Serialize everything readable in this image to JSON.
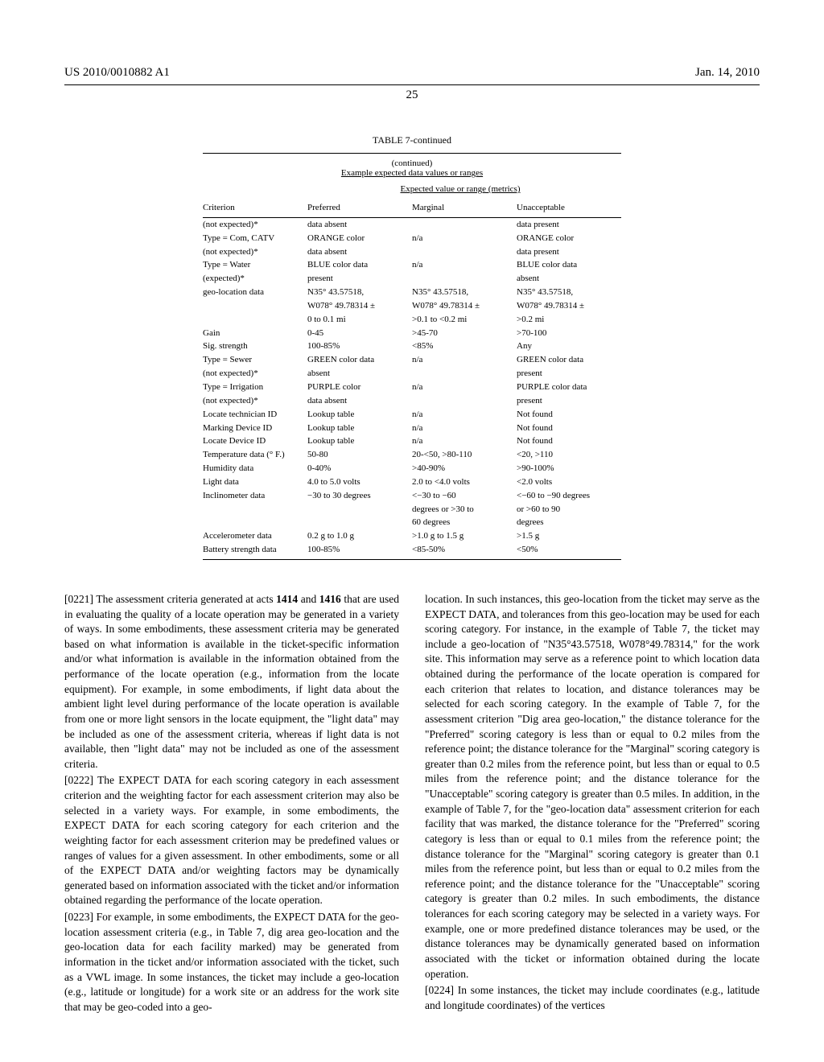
{
  "header": {
    "pub_number": "US 2010/0010882 A1",
    "pub_date": "Jan. 14, 2010",
    "page_number": "25"
  },
  "table": {
    "title": "TABLE 7-continued",
    "subtitle1": "(continued)",
    "subtitle2": "Example expected data values or ranges",
    "expected_header": "Expected value or range (metrics)",
    "columns": [
      "Criterion",
      "Preferred",
      "Marginal",
      "Unacceptable"
    ],
    "rows": [
      [
        "(not expected)*",
        "data absent",
        "",
        "data present"
      ],
      [
        "Type = Com, CATV",
        "ORANGE color",
        "n/a",
        "ORANGE color"
      ],
      [
        "(not expected)*",
        "data absent",
        "",
        "data present"
      ],
      [
        "Type = Water",
        "BLUE color data",
        "n/a",
        "BLUE color data"
      ],
      [
        "(expected)*",
        "present",
        "",
        "absent"
      ],
      [
        "geo-location data",
        "N35° 43.57518,",
        "N35° 43.57518,",
        "N35° 43.57518,"
      ],
      [
        "",
        "W078° 49.78314 ±",
        "W078° 49.78314 ±",
        "W078° 49.78314 ±"
      ],
      [
        "",
        "0 to 0.1 mi",
        ">0.1 to <0.2 mi",
        ">0.2 mi"
      ],
      [
        "Gain",
        "0-45",
        ">45-70",
        ">70-100"
      ],
      [
        "Sig. strength",
        "100-85%",
        "<85%",
        "Any"
      ],
      [
        "Type = Sewer",
        "GREEN color data",
        "n/a",
        "GREEN color data"
      ],
      [
        "(not expected)*",
        "absent",
        "",
        "present"
      ],
      [
        "Type = Irrigation",
        "PURPLE color",
        "n/a",
        "PURPLE color data"
      ],
      [
        "(not expected)*",
        "data absent",
        "",
        "present"
      ],
      [
        "Locate technician ID",
        "Lookup table",
        "n/a",
        "Not found"
      ],
      [
        "Marking Device ID",
        "Lookup table",
        "n/a",
        "Not found"
      ],
      [
        "Locate Device ID",
        "Lookup table",
        "n/a",
        "Not found"
      ],
      [
        "Temperature data (° F.)",
        "50-80",
        "20-<50, >80-110",
        "<20, >110"
      ],
      [
        "Humidity data",
        "0-40%",
        ">40-90%",
        ">90-100%"
      ],
      [
        "Light data",
        "4.0 to 5.0 volts",
        "2.0 to <4.0 volts",
        "<2.0 volts"
      ],
      [
        "Inclinometer data",
        "−30 to 30 degrees",
        "<−30 to −60",
        "<−60 to −90 degrees"
      ],
      [
        "",
        "",
        "degrees or >30 to",
        "or >60 to 90"
      ],
      [
        "",
        "",
        "60 degrees",
        "degrees"
      ],
      [
        "Accelerometer data",
        "0.2 g to 1.0 g",
        ">1.0 g to 1.5 g",
        ">1.5 g"
      ],
      [
        "Battery strength data",
        "100-85%",
        "<85-50%",
        "<50%"
      ]
    ]
  },
  "paragraphs": {
    "p0221": "[0221]   The assessment criteria generated at acts 1414 and 1416 that are used in evaluating the quality of a locate operation may be generated in a variety of ways. In some embodiments, these assessment criteria may be generated based on what information is available in the ticket-specific information and/or what information is available in the information obtained from the performance of the locate operation (e.g., information from the locate equipment). For example, in some embodiments, if light data about the ambient light level during performance of the locate operation is available from one or more light sensors in the locate equipment, the \"light data\" may be included as one of the assessment criteria, whereas if light data is not available, then \"light data\" may not be included as one of the assessment criteria.",
    "p0222": "[0222]   The EXPECT DATA for each scoring category in each assessment criterion and the weighting factor for each assessment criterion may also be selected in a variety ways. For example, in some embodiments, the EXPECT DATA for each scoring category for each criterion and the weighting factor for each assessment criterion may be predefined values or ranges of values for a given assessment. In other embodiments, some or all of the EXPECT DATA and/or weighting factors may be dynamically generated based on information associated with the ticket and/or information obtained regarding the performance of the locate operation.",
    "p0223": "[0223]   For example, in some embodiments, the EXPECT DATA for the geo-location assessment criteria (e.g., in Table 7, dig area geo-location and the geo-location data for each facility marked) may be generated from information in the ticket and/or information associated with the ticket, such as a VWL image. In some instances, the ticket may include a geo-location (e.g., latitude or longitude) for a work site or an address for the work site that may be geo-coded into a geo-",
    "right1": "location. In such instances, this geo-location from the ticket may serve as the EXPECT DATA, and tolerances from this geo-location may be used for each scoring category. For instance, in the example of Table 7, the ticket may include a geo-location of \"N35°43.57518, W078°49.78314,\" for the work site. This information may serve as a reference point to which location data obtained during the performance of the locate operation is compared for each criterion that relates to location, and distance tolerances may be selected for each scoring category. In the example of Table 7, for the assessment criterion \"Dig area geo-location,\" the distance tolerance for the \"Preferred\" scoring category is less than or equal to 0.2 miles from the reference point; the distance tolerance for the \"Marginal\" scoring category is greater than 0.2 miles from the reference point, but less than or equal to 0.5 miles from the reference point; and the distance tolerance for the \"Unacceptable\" scoring category is greater than 0.5 miles. In addition, in the example of Table 7, for the \"geo-location data\" assessment criterion for each facility that was marked, the distance tolerance for the \"Preferred\" scoring category is less than or equal to 0.1 miles from the reference point; the distance tolerance for the \"Marginal\" scoring category is greater than 0.1 miles from the reference point, but less than or equal to 0.2 miles from the reference point; and the distance tolerance for the \"Unacceptable\" scoring category is greater than 0.2 miles. In such embodiments, the distance tolerances for each scoring category may be selected in a variety ways. For example, one or more predefined distance tolerances may be used, or the distance tolerances may be dynamically generated based on information associated with the ticket or information obtained during the locate operation.",
    "p0224": "[0224]   In some instances, the ticket may include coordinates (e.g., latitude and longitude coordinates) of the vertices"
  }
}
